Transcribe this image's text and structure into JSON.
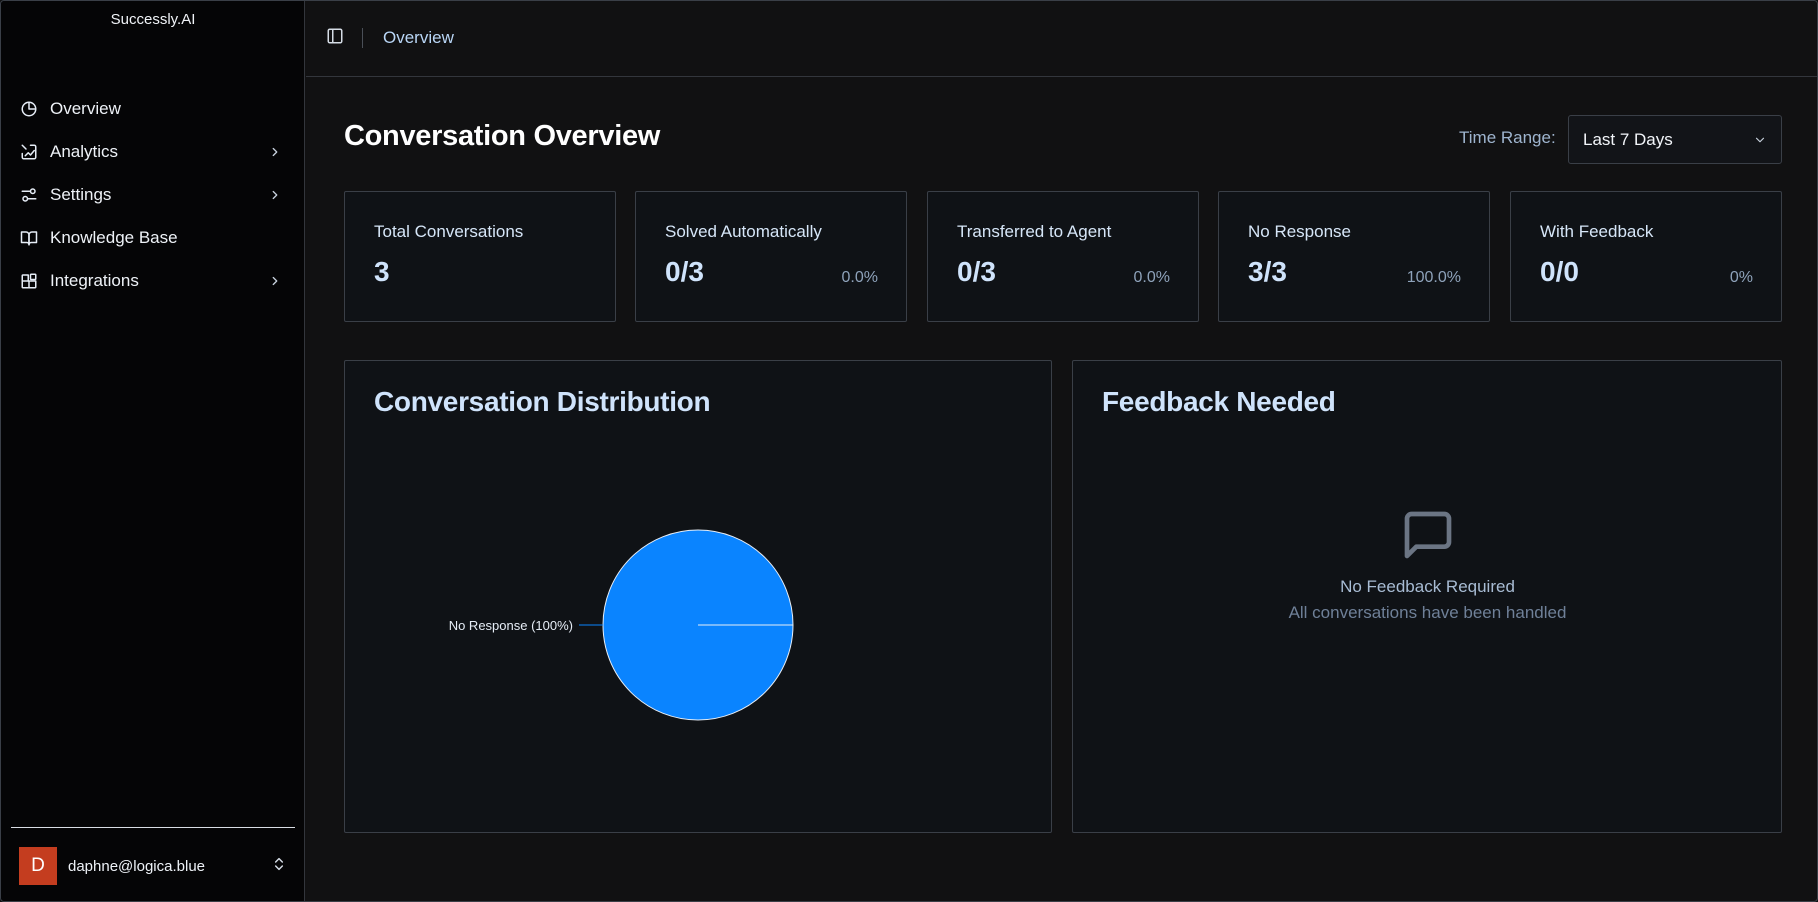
{
  "sidebar": {
    "brand": "Successly.AI",
    "items": [
      {
        "label": "Overview",
        "icon": "pie-chart-icon",
        "has_children": false
      },
      {
        "label": "Analytics",
        "icon": "analytics-icon",
        "has_children": true
      },
      {
        "label": "Settings",
        "icon": "sliders-icon",
        "has_children": true
      },
      {
        "label": "Knowledge Base",
        "icon": "book-open-icon",
        "has_children": false
      },
      {
        "label": "Integrations",
        "icon": "blocks-icon",
        "has_children": true
      }
    ],
    "user": {
      "initial": "D",
      "email": "daphne@logica.blue",
      "avatar_color": "#c43d1f"
    }
  },
  "header": {
    "breadcrumb": "Overview"
  },
  "main": {
    "title": "Conversation Overview",
    "time_range": {
      "label": "Time Range:",
      "value": "Last 7 Days"
    },
    "stats": [
      {
        "title": "Total Conversations",
        "value": "3",
        "percent": ""
      },
      {
        "title": "Solved Automatically",
        "value": "0/3",
        "percent": "0.0%"
      },
      {
        "title": "Transferred to Agent",
        "value": "0/3",
        "percent": "0.0%"
      },
      {
        "title": "No Response",
        "value": "3/3",
        "percent": "100.0%"
      },
      {
        "title": "With Feedback",
        "value": "0/0",
        "percent": "0%"
      }
    ],
    "distribution": {
      "title": "Conversation Distribution"
    },
    "feedback": {
      "title": "Feedback Needed",
      "empty_title": "No Feedback Required",
      "empty_subtitle": "All conversations have been handled"
    }
  },
  "chart_data": {
    "type": "pie",
    "slices": [
      {
        "label": "No Response (100%)",
        "value": 100,
        "color": "#0a84ff"
      }
    ]
  },
  "colors": {
    "accent": "#0a84ff",
    "background": "#111112",
    "sidebar": "#050506"
  }
}
